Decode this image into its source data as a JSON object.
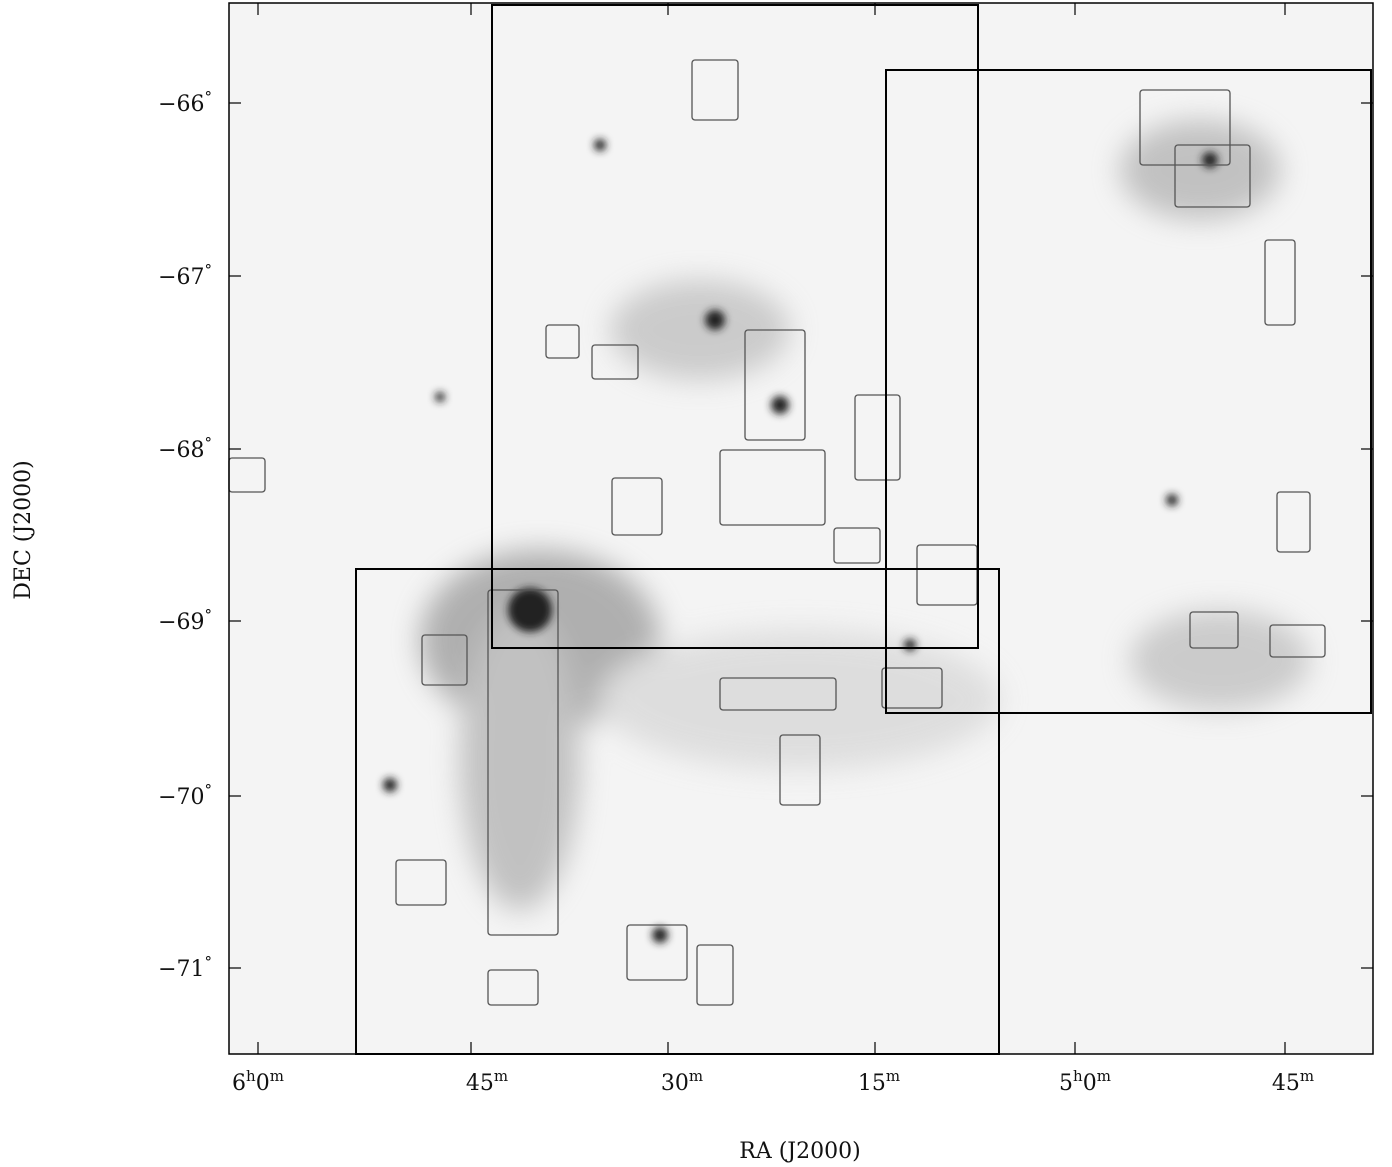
{
  "figure": {
    "y_axis_title": "DEC (J2000)",
    "x_axis_title": "RA (J2000)",
    "y_tick_labels": [
      [
        "−66",
        "°"
      ],
      [
        "−67",
        "°"
      ],
      [
        "−68",
        "°"
      ],
      [
        "−69",
        "°"
      ],
      [
        "−70",
        "°"
      ],
      [
        "−71",
        "°"
      ]
    ],
    "x_tick_labels": [
      [
        "6",
        "h",
        "0",
        "m"
      ],
      [
        "45",
        "m"
      ],
      [
        "30",
        "m"
      ],
      [
        "15",
        "m"
      ],
      [
        "5",
        "h",
        "0",
        "m"
      ],
      [
        "45",
        "m"
      ]
    ]
  }
}
